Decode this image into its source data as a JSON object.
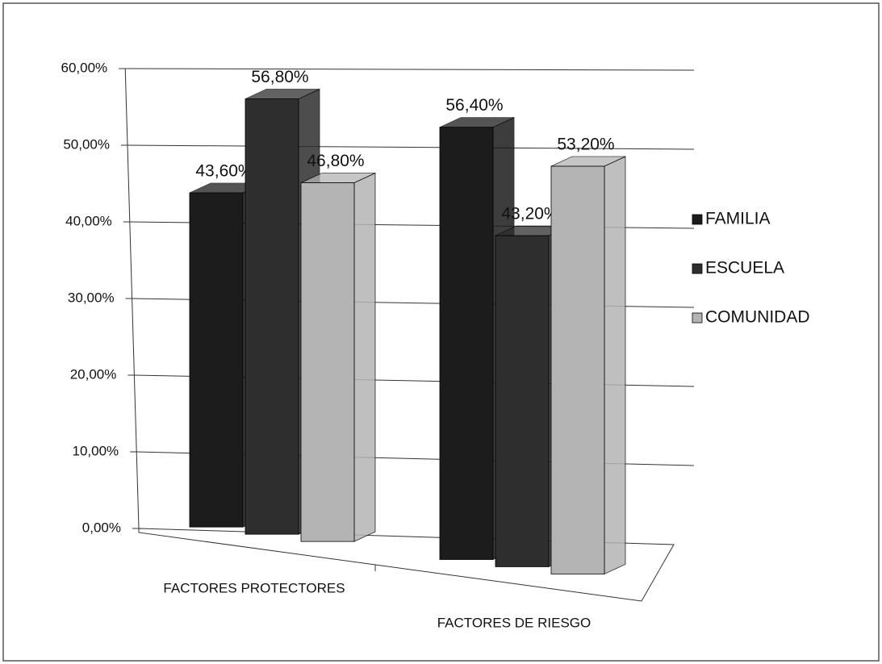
{
  "chart_data": {
    "type": "bar3d",
    "categories": [
      "FACTORES PROTECTORES",
      "FACTORES DE RIESGO"
    ],
    "series": [
      {
        "name": "FAMILIA",
        "color": "#1c1c1c",
        "values": [
          43.6,
          56.4
        ],
        "value_labels": [
          "43,60%",
          "56,40%"
        ]
      },
      {
        "name": "ESCUELA",
        "color": "#2e2e2e",
        "values": [
          56.8,
          43.2
        ],
        "value_labels": [
          "56,80%",
          "43,20%"
        ]
      },
      {
        "name": "COMUNIDAD",
        "color": "#b4b4b4",
        "values": [
          46.8,
          53.2
        ],
        "value_labels": [
          "46,80%",
          "53,20%"
        ]
      }
    ],
    "ylim": [
      0,
      60
    ],
    "yticks": [
      {
        "value": 0,
        "label": "0,00%"
      },
      {
        "value": 10,
        "label": "10,00%"
      },
      {
        "value": 20,
        "label": "20,00%"
      },
      {
        "value": 30,
        "label": "30,00%"
      },
      {
        "value": 40,
        "label": "40,00%"
      },
      {
        "value": 50,
        "label": "50,00%"
      },
      {
        "value": 60,
        "label": "60,00%"
      }
    ],
    "grid": true,
    "legend": "right"
  }
}
